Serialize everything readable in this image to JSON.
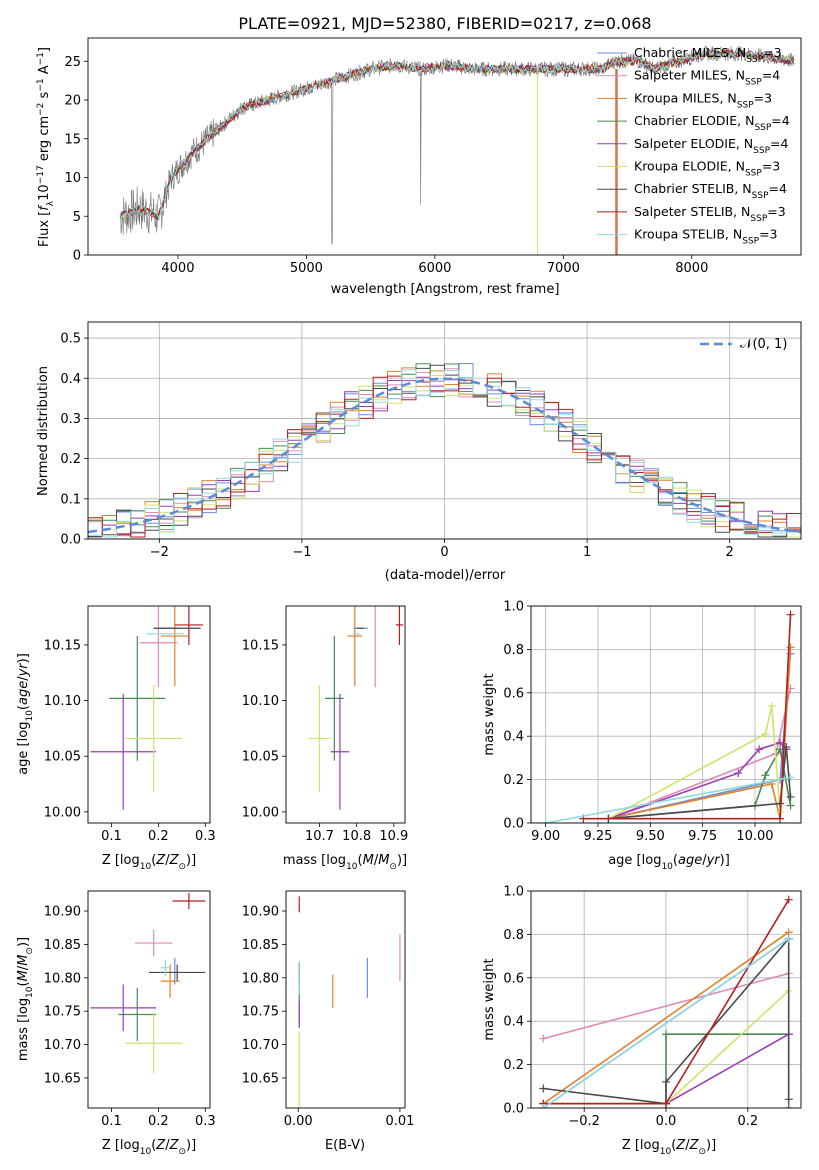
{
  "figure_title": "PLATE=0921, MJD=52380, FIBERID=0217, z=0.068",
  "models": [
    {
      "name": "Chabrier MILES",
      "nssp": "3",
      "color": "#6d8fe0"
    },
    {
      "name": "Salpeter MILES",
      "nssp": "4",
      "color": "#e08ab8"
    },
    {
      "name": "Kroupa MILES",
      "nssp": "3",
      "color": "#e0812b"
    },
    {
      "name": "Chabrier ELODIE",
      "nssp": "4",
      "color": "#4a8a55"
    },
    {
      "name": "Salpeter ELODIE",
      "nssp": "4",
      "color": "#9a3bb8"
    },
    {
      "name": "Kroupa ELODIE",
      "nssp": "3",
      "color": "#cfe36a"
    },
    {
      "name": "Chabrier STELIB",
      "nssp": "4",
      "color": "#4a4a4a"
    },
    {
      "name": "Salpeter STELIB",
      "nssp": "3",
      "color": "#b51f1f"
    },
    {
      "name": "Kroupa STELIB",
      "nssp": "3",
      "color": "#8fd8de"
    }
  ],
  "chart_data": [
    {
      "id": "spectrum",
      "type": "line",
      "xlabel": "wavelength [Angstrom, rest frame]",
      "ylabel": "Flux [f_λ 10^-17 erg cm^-2 s^-1 A^-1]",
      "xlim": [
        3300,
        8850
      ],
      "ylim": [
        0,
        28
      ],
      "xticks": [
        4000,
        5000,
        6000,
        7000,
        8000
      ],
      "yticks": [
        0,
        5,
        10,
        15,
        20,
        25
      ],
      "continuum": [
        [
          3550,
          5
        ],
        [
          3700,
          6
        ],
        [
          3850,
          5
        ],
        [
          3950,
          10
        ],
        [
          4100,
          13
        ],
        [
          4300,
          16
        ],
        [
          4500,
          19
        ],
        [
          4700,
          20
        ],
        [
          4900,
          21
        ],
        [
          5100,
          22
        ],
        [
          5300,
          23
        ],
        [
          5500,
          24
        ],
        [
          5700,
          24.5
        ],
        [
          5900,
          24
        ],
        [
          6100,
          24.5
        ],
        [
          6300,
          24
        ],
        [
          6500,
          24
        ],
        [
          6700,
          24
        ],
        [
          6900,
          24
        ],
        [
          7100,
          24
        ],
        [
          7300,
          24
        ],
        [
          7400,
          25
        ],
        [
          7600,
          25
        ],
        [
          7700,
          24
        ],
        [
          7900,
          25
        ],
        [
          8100,
          26
        ],
        [
          8400,
          26
        ],
        [
          8800,
          25
        ]
      ],
      "legend_position": "upper right"
    },
    {
      "id": "residuals",
      "type": "histogram",
      "xlabel": "(data-model)/error",
      "ylabel": "Normed distribution",
      "xlim": [
        -2.5,
        2.5
      ],
      "ylim": [
        0,
        0.54
      ],
      "xticks": [
        -2,
        -1,
        0,
        1,
        2
      ],
      "yticks": [
        0.0,
        0.1,
        0.2,
        0.3,
        0.4,
        0.5
      ],
      "grid": true,
      "reference_curve": "𝒩(0, 1)",
      "legend_position": "upper right"
    },
    {
      "id": "age_vs_Z",
      "type": "scatter",
      "xlabel": "Z [log10(Z/Z⊙)]",
      "ylabel": "age [log10(age/yr)]",
      "xlim": [
        0.05,
        0.31
      ],
      "ylim": [
        9.99,
        10.185
      ],
      "xticks": [
        0.1,
        0.2,
        0.3
      ],
      "yticks": [
        10.0,
        10.05,
        10.1,
        10.15
      ],
      "points": [
        {
          "x": 0.22,
          "y": 10.165,
          "xerr": 0.03,
          "yerr": 0.0
        },
        {
          "x": 0.2,
          "y": 10.152,
          "xerr": 0.04,
          "yerr": 0.04
        },
        {
          "x": 0.235,
          "y": 10.158,
          "xerr": 0.03,
          "yerr": 0.045
        },
        {
          "x": 0.155,
          "y": 10.102,
          "xerr": 0.06,
          "yerr": 0.056
        },
        {
          "x": 0.125,
          "y": 10.054,
          "xerr": 0.07,
          "yerr": 0.052
        },
        {
          "x": 0.19,
          "y": 10.066,
          "xerr": 0.06,
          "yerr": 0.048
        },
        {
          "x": 0.24,
          "y": 10.165,
          "xerr": 0.05,
          "yerr": 0.0
        },
        {
          "x": 0.265,
          "y": 10.168,
          "xerr": 0.03,
          "yerr": 0.018
        },
        {
          "x": 0.215,
          "y": 10.16,
          "xerr": 0.04,
          "yerr": 0.0
        }
      ]
    },
    {
      "id": "age_vs_mass",
      "type": "scatter",
      "xlabel": "mass [log10(M/M⊙)]",
      "ylabel": "",
      "xlim": [
        10.61,
        10.93
      ],
      "ylim": [
        9.99,
        10.185
      ],
      "xticks": [
        10.7,
        10.8,
        10.9
      ],
      "yticks": [
        10.0,
        10.05,
        10.1,
        10.15
      ],
      "points": [
        {
          "x": 10.81,
          "y": 10.165,
          "xerr": 0.02,
          "yerr": 0.0
        },
        {
          "x": 10.85,
          "y": 10.152,
          "xerr": 0.0,
          "yerr": 0.04
        },
        {
          "x": 10.795,
          "y": 10.158,
          "xerr": 0.02,
          "yerr": 0.045
        },
        {
          "x": 10.74,
          "y": 10.102,
          "xerr": 0.025,
          "yerr": 0.056
        },
        {
          "x": 10.755,
          "y": 10.054,
          "xerr": 0.025,
          "yerr": 0.052
        },
        {
          "x": 10.7,
          "y": 10.066,
          "xerr": 0.03,
          "yerr": 0.048
        },
        {
          "x": 10.81,
          "y": 10.165,
          "xerr": 0.01,
          "yerr": 0.0
        },
        {
          "x": 10.915,
          "y": 10.168,
          "xerr": 0.01,
          "yerr": 0.018
        },
        {
          "x": 10.8,
          "y": 10.16,
          "xerr": 0.01,
          "yerr": 0.0
        }
      ]
    },
    {
      "id": "mass_weight_vs_age",
      "type": "line",
      "xlabel": "age [log10(age/yr)]",
      "ylabel": "mass weight",
      "xlim": [
        8.93,
        10.22
      ],
      "ylim": [
        0,
        1.0
      ],
      "xticks": [
        9.0,
        9.25,
        9.5,
        9.75,
        10.0
      ],
      "yticks": [
        0.0,
        0.2,
        0.4,
        0.6,
        0.8,
        1.0
      ],
      "grid": true,
      "series": [
        {
          "x": [
            9.3,
            10.12,
            10.17
          ],
          "y": [
            0.02,
            0.2,
            0.78
          ]
        },
        {
          "x": [
            9.3,
            10.1,
            10.17
          ],
          "y": [
            0.02,
            0.32,
            0.62
          ]
        },
        {
          "x": [
            9.3,
            10.08,
            10.12,
            10.17
          ],
          "y": [
            0.02,
            0.18,
            0.02,
            0.81
          ]
        },
        {
          "x": [
            9.3,
            10.0,
            10.05,
            10.12,
            10.17
          ],
          "y": [
            0.02,
            0.08,
            0.22,
            0.34,
            0.08
          ]
        },
        {
          "x": [
            9.3,
            9.92,
            10.02,
            10.12,
            10.15
          ],
          "y": [
            0.02,
            0.23,
            0.34,
            0.37,
            0.34
          ]
        },
        {
          "x": [
            9.3,
            10.05,
            10.08,
            10.12
          ],
          "y": [
            0.02,
            0.41,
            0.54,
            0.05
          ]
        },
        {
          "x": [
            9.3,
            10.12,
            10.15,
            10.17
          ],
          "y": [
            0.02,
            0.09,
            0.35,
            0.12
          ]
        },
        {
          "x": [
            9.18,
            10.12,
            10.17
          ],
          "y": [
            0.02,
            0.02,
            0.96
          ]
        },
        {
          "x": [
            9.0,
            10.17
          ],
          "y": [
            0.0,
            0.21
          ]
        }
      ]
    },
    {
      "id": "mass_vs_Z",
      "type": "scatter",
      "xlabel": "Z [log10(Z/Z⊙)]",
      "ylabel": "mass [log10(M/M⊙)]",
      "xlim": [
        0.05,
        0.31
      ],
      "ylim": [
        10.605,
        10.93
      ],
      "xticks": [
        0.1,
        0.2,
        0.3
      ],
      "yticks": [
        10.65,
        10.7,
        10.75,
        10.8,
        10.85,
        10.9
      ],
      "points": [
        {
          "x": 0.235,
          "y": 10.81,
          "xerr": 0.0,
          "yerr": 0.02
        },
        {
          "x": 0.19,
          "y": 10.852,
          "xerr": 0.04,
          "yerr": 0.02
        },
        {
          "x": 0.225,
          "y": 10.795,
          "xerr": 0.02,
          "yerr": 0.025
        },
        {
          "x": 0.155,
          "y": 10.745,
          "xerr": 0.04,
          "yerr": 0.04
        },
        {
          "x": 0.125,
          "y": 10.755,
          "xerr": 0.07,
          "yerr": 0.035
        },
        {
          "x": 0.19,
          "y": 10.702,
          "xerr": 0.06,
          "yerr": 0.045
        },
        {
          "x": 0.24,
          "y": 10.808,
          "xerr": 0.06,
          "yerr": 0.012
        },
        {
          "x": 0.265,
          "y": 10.915,
          "xerr": 0.035,
          "yerr": 0.012
        },
        {
          "x": 0.215,
          "y": 10.815,
          "xerr": 0.01,
          "yerr": 0.012
        }
      ]
    },
    {
      "id": "mass_vs_EBV",
      "type": "scatter",
      "xlabel": "E(B-V)",
      "ylabel": "",
      "xlim": [
        -0.0012,
        0.0105
      ],
      "ylim": [
        10.605,
        10.93
      ],
      "xticks": [
        0.0,
        0.01
      ],
      "yticks": [
        10.65,
        10.7,
        10.75,
        10.8,
        10.85,
        10.9
      ],
      "points": [
        {
          "x": 0.0068,
          "y": 10.8,
          "xerr": 0.0,
          "yerr": 0.03
        },
        {
          "x": 0.01,
          "y": 10.83,
          "xerr": 0.0,
          "yerr": 0.035
        },
        {
          "x": 0.0034,
          "y": 10.78,
          "xerr": 0.0,
          "yerr": 0.025
        },
        {
          "x": 0.0001,
          "y": 10.775,
          "xerr": 0.0,
          "yerr": 0.045
        },
        {
          "x": 0.0001,
          "y": 10.745,
          "xerr": 0.0,
          "yerr": 0.02
        },
        {
          "x": 0.0001,
          "y": 10.66,
          "xerr": 0.0,
          "yerr": 0.06
        },
        {
          "x": 0.0001,
          "y": 10.81,
          "xerr": 0.0,
          "yerr": 0.012
        },
        {
          "x": 0.0001,
          "y": 10.91,
          "xerr": 0.0,
          "yerr": 0.012
        },
        {
          "x": 0.0001,
          "y": 10.8,
          "xerr": 0.0,
          "yerr": 0.025
        }
      ]
    },
    {
      "id": "mass_weight_vs_Z",
      "type": "line",
      "xlabel": "Z [log10(Z/Z⊙)]",
      "ylabel": "mass weight",
      "xlim": [
        -0.33,
        0.33
      ],
      "ylim": [
        0,
        1.0
      ],
      "xticks": [
        -0.2,
        0.0,
        0.2
      ],
      "yticks": [
        0.0,
        0.2,
        0.4,
        0.6,
        0.8,
        1.0
      ],
      "grid": true,
      "series": [
        {
          "x": [
            -0.3,
            0.3
          ],
          "y": [
            0.0,
            0.78
          ]
        },
        {
          "x": [
            -0.3,
            0.3
          ],
          "y": [
            0.32,
            0.62
          ]
        },
        {
          "x": [
            -0.3,
            0.3
          ],
          "y": [
            0.02,
            0.81
          ]
        },
        {
          "x": [
            -0.3,
            0.0,
            0.0,
            0.3,
            0.3
          ],
          "y": [
            0.02,
            0.02,
            0.34,
            0.34,
            0.0
          ]
        },
        {
          "x": [
            -0.3,
            0.0,
            0.3
          ],
          "y": [
            0.02,
            0.02,
            0.34
          ]
        },
        {
          "x": [
            -0.3,
            0.0,
            0.3
          ],
          "y": [
            0.02,
            0.02,
            0.54
          ]
        },
        {
          "x": [
            -0.3,
            0.0,
            0.0,
            0.3,
            0.3
          ],
          "y": [
            0.09,
            0.02,
            0.12,
            0.78,
            0.04
          ]
        },
        {
          "x": [
            -0.3,
            0.0,
            0.3
          ],
          "y": [
            0.02,
            0.02,
            0.96
          ]
        },
        {
          "x": [
            -0.3,
            0.3
          ],
          "y": [
            0.0,
            0.78
          ]
        }
      ]
    }
  ]
}
